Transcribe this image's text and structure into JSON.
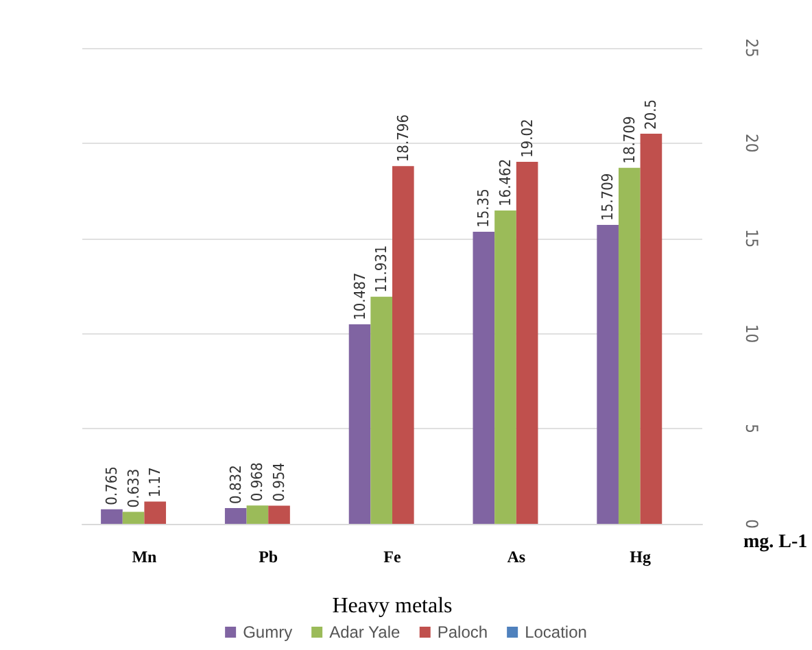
{
  "chart_data": {
    "type": "bar",
    "xlabel": "Heavy metals",
    "ylabel": "mg. L-1",
    "categories": [
      "Mn",
      "Pb",
      "Fe",
      "As",
      "Hg"
    ],
    "series": [
      {
        "name": "Gumry",
        "color": "#8064a2",
        "values": [
          0.765,
          0.832,
          10.487,
          15.35,
          15.709
        ]
      },
      {
        "name": "Adar Yale",
        "color": "#9bbb59",
        "values": [
          0.633,
          0.968,
          11.931,
          16.462,
          18.709
        ]
      },
      {
        "name": "Paloch",
        "color": "#c0504d",
        "values": [
          1.17,
          0.954,
          18.796,
          19.02,
          20.5
        ]
      },
      {
        "name": "Location",
        "color": "#4f81bd",
        "values": [
          null,
          null,
          null,
          null,
          null
        ]
      }
    ],
    "ylim": [
      0,
      25
    ],
    "yticks": [
      0,
      5,
      10,
      15,
      20,
      25
    ],
    "grid": "y",
    "data_labels": true,
    "legend": "bottom"
  }
}
